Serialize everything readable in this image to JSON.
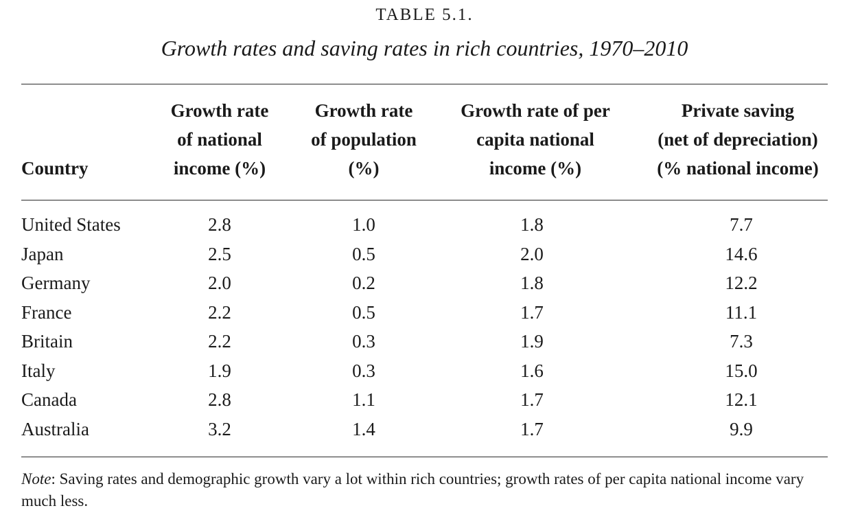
{
  "table": {
    "number": "TABLE 5.1.",
    "title": "Growth rates and saving rates in rich countries, 1970–2010",
    "headers": {
      "country": "Country",
      "col1": [
        "Growth rate",
        "of national",
        "income (%)"
      ],
      "col2": [
        "Growth rate",
        "of population",
        "(%)"
      ],
      "col3": [
        "Growth rate of per",
        "capita national",
        "income (%)"
      ],
      "col4": [
        "Private saving",
        "(net of depreciation)",
        "(% national income)"
      ]
    },
    "rows": [
      {
        "country": "United States",
        "national_income_growth": "2.8",
        "population_growth": "1.0",
        "per_capita_growth": "1.8",
        "private_saving": "7.7"
      },
      {
        "country": "Japan",
        "national_income_growth": "2.5",
        "population_growth": "0.5",
        "per_capita_growth": "2.0",
        "private_saving": "14.6"
      },
      {
        "country": "Germany",
        "national_income_growth": "2.0",
        "population_growth": "0.2",
        "per_capita_growth": "1.8",
        "private_saving": "12.2"
      },
      {
        "country": "France",
        "national_income_growth": "2.2",
        "population_growth": "0.5",
        "per_capita_growth": "1.7",
        "private_saving": "11.1"
      },
      {
        "country": "Britain",
        "national_income_growth": "2.2",
        "population_growth": "0.3",
        "per_capita_growth": "1.9",
        "private_saving": "7.3"
      },
      {
        "country": "Italy",
        "national_income_growth": "1.9",
        "population_growth": "0.3",
        "per_capita_growth": "1.6",
        "private_saving": "15.0"
      },
      {
        "country": "Canada",
        "national_income_growth": "2.8",
        "population_growth": "1.1",
        "per_capita_growth": "1.7",
        "private_saving": "12.1"
      },
      {
        "country": "Australia",
        "national_income_growth": "3.2",
        "population_growth": "1.4",
        "per_capita_growth": "1.7",
        "private_saving": "9.9"
      }
    ],
    "note": {
      "label": "Note",
      "text": ": Saving rates and demographic growth vary a lot within rich countries; growth rates of per capita national income vary much less."
    }
  }
}
